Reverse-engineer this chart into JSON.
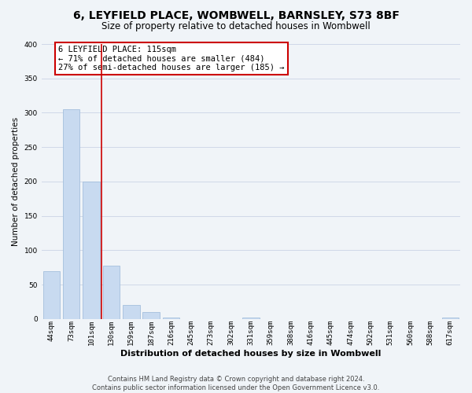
{
  "title": "6, LEYFIELD PLACE, WOMBWELL, BARNSLEY, S73 8BF",
  "subtitle": "Size of property relative to detached houses in Wombwell",
  "bar_labels": [
    "44sqm",
    "73sqm",
    "101sqm",
    "130sqm",
    "159sqm",
    "187sqm",
    "216sqm",
    "245sqm",
    "273sqm",
    "302sqm",
    "331sqm",
    "359sqm",
    "388sqm",
    "416sqm",
    "445sqm",
    "474sqm",
    "502sqm",
    "531sqm",
    "560sqm",
    "588sqm",
    "617sqm"
  ],
  "bar_values": [
    70,
    305,
    200,
    78,
    20,
    10,
    2,
    0,
    0,
    0,
    2,
    0,
    0,
    0,
    0,
    0,
    0,
    0,
    0,
    0,
    2
  ],
  "bar_color": "#c8daf0",
  "bar_edge_color": "#9ab8d8",
  "ylabel": "Number of detached properties",
  "xlabel": "Distribution of detached houses by size in Wombwell",
  "ylim": [
    0,
    400
  ],
  "yticks": [
    0,
    50,
    100,
    150,
    200,
    250,
    300,
    350,
    400
  ],
  "vline_index": 2,
  "vline_color": "#cc0000",
  "annotation_title": "6 LEYFIELD PLACE: 115sqm",
  "annotation_line1": "← 71% of detached houses are smaller (484)",
  "annotation_line2": "27% of semi-detached houses are larger (185) →",
  "annotation_box_color": "#ffffff",
  "annotation_box_edge": "#cc0000",
  "footer_line1": "Contains HM Land Registry data © Crown copyright and database right 2024.",
  "footer_line2": "Contains public sector information licensed under the Open Government Licence v3.0.",
  "grid_color": "#d0d8e8",
  "background_color": "#f0f4f8",
  "title_fontsize": 10,
  "subtitle_fontsize": 8.5,
  "xlabel_fontsize": 8,
  "ylabel_fontsize": 7.5,
  "tick_fontsize": 6.5,
  "footer_fontsize": 6
}
